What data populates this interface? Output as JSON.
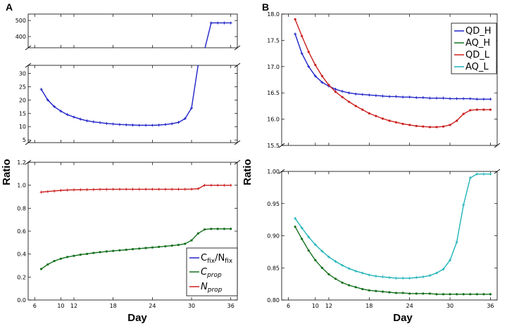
{
  "colors": {
    "blue": "#1f22c8",
    "red": "#cc1f1f",
    "green": "#15701e",
    "cyan": "#1fb3b8"
  },
  "chart_data": [
    {
      "id": "A",
      "panel_label": "A",
      "type": "line",
      "xlabel": "Day",
      "ylabel": "Ratio",
      "xlim": [
        5,
        37
      ],
      "xticks": [
        {
          "v": 6,
          "label": "6"
        },
        {
          "v": 10,
          "label": "10"
        },
        {
          "v": 12,
          "label": "12"
        },
        {
          "v": 18,
          "label": "18"
        },
        {
          "v": 24,
          "label": "24"
        },
        {
          "v": 30,
          "label": "30"
        },
        {
          "v": 36,
          "label": "36"
        }
      ],
      "subplots": [
        {
          "id": "A_top",
          "ylim": [
            330,
            540
          ],
          "yticks": [
            {
              "v": 400,
              "label": "400"
            },
            {
              "v": 500,
              "label": "500"
            }
          ],
          "series": [
            {
              "name": "Cfix/Nfix",
              "color": "blue",
              "marker": "plus",
              "x": [
                32,
                33,
                34,
                35,
                36
              ],
              "y": [
                320,
                485,
                485,
                485,
                485
              ]
            }
          ]
        },
        {
          "id": "A_mid",
          "ylim": [
            4,
            33
          ],
          "yticks": [
            {
              "v": 5,
              "label": "5"
            },
            {
              "v": 10,
              "label": "10"
            },
            {
              "v": 15,
              "label": "15"
            },
            {
              "v": 20,
              "label": "20"
            },
            {
              "v": 25,
              "label": "25"
            },
            {
              "v": 30,
              "label": "30"
            }
          ],
          "series": [
            {
              "name": "Cfix/Nfix",
              "color": "blue",
              "marker": "plus",
              "x": [
                7,
                8,
                9,
                10,
                11,
                12,
                13,
                14,
                15,
                16,
                17,
                18,
                19,
                20,
                21,
                22,
                23,
                24,
                25,
                26,
                27,
                28,
                29,
                30,
                31,
                31.6
              ],
              "y": [
                24,
                20,
                17.5,
                15.8,
                14.5,
                13.6,
                12.8,
                12.2,
                11.8,
                11.5,
                11.2,
                11,
                10.8,
                10.7,
                10.6,
                10.5,
                10.5,
                10.5,
                10.6,
                10.8,
                11.1,
                11.6,
                13,
                17,
                33,
                45
              ]
            }
          ]
        },
        {
          "id": "A_bot",
          "ylim": [
            0,
            1.2
          ],
          "yticks": [
            {
              "v": 0,
              "label": "0.0"
            },
            {
              "v": 0.2,
              "label": "0.2"
            },
            {
              "v": 0.4,
              "label": "0.4"
            },
            {
              "v": 0.6,
              "label": "0.6"
            },
            {
              "v": 0.8,
              "label": "0.8"
            },
            {
              "v": 1.0,
              "label": "1.0"
            },
            {
              "v": 1.2,
              "label": "1.2"
            }
          ],
          "series": [
            {
              "name": "Nprop",
              "color": "red",
              "marker": "plus",
              "x": [
                7,
                8,
                9,
                10,
                11,
                12,
                13,
                14,
                15,
                16,
                17,
                18,
                19,
                20,
                21,
                22,
                23,
                24,
                25,
                26,
                27,
                28,
                29,
                30,
                31,
                32,
                33,
                34,
                35,
                36
              ],
              "y": [
                0.94,
                0.945,
                0.95,
                0.955,
                0.958,
                0.96,
                0.961,
                0.962,
                0.963,
                0.964,
                0.964,
                0.965,
                0.965,
                0.965,
                0.965,
                0.965,
                0.965,
                0.965,
                0.965,
                0.965,
                0.965,
                0.965,
                0.965,
                0.966,
                0.97,
                1.0,
                1.0,
                1.0,
                1.0,
                1.0
              ]
            },
            {
              "name": "Cprop",
              "color": "green",
              "marker": "dot",
              "x": [
                7,
                8,
                9,
                10,
                11,
                12,
                13,
                14,
                15,
                16,
                17,
                18,
                19,
                20,
                21,
                22,
                23,
                24,
                25,
                26,
                27,
                28,
                29,
                30,
                31,
                32,
                33,
                34,
                35,
                36
              ],
              "y": [
                0.27,
                0.31,
                0.34,
                0.36,
                0.375,
                0.385,
                0.395,
                0.402,
                0.41,
                0.417,
                0.423,
                0.428,
                0.433,
                0.438,
                0.443,
                0.448,
                0.453,
                0.458,
                0.463,
                0.468,
                0.474,
                0.48,
                0.49,
                0.52,
                0.58,
                0.615,
                0.62,
                0.62,
                0.62,
                0.62
              ]
            }
          ]
        }
      ],
      "legend": {
        "position": "lower-right",
        "entries": [
          {
            "color": "blue",
            "text": "C",
            "sub1": "fix",
            "mid": "/N",
            "sub2": "fix"
          },
          {
            "color": "green",
            "text": "C",
            "sub1": "prop",
            "mid": "",
            "sub2": ""
          },
          {
            "color": "red",
            "text": "N",
            "sub1": "prop",
            "mid": "",
            "sub2": ""
          }
        ]
      }
    },
    {
      "id": "B",
      "panel_label": "B",
      "type": "line",
      "xlabel": "Day",
      "ylabel": "Ratio",
      "xlim": [
        5,
        37
      ],
      "xticks": [
        {
          "v": 6,
          "label": "6"
        },
        {
          "v": 10,
          "label": "10"
        },
        {
          "v": 12,
          "label": "12"
        },
        {
          "v": 18,
          "label": "18"
        },
        {
          "v": 24,
          "label": "24"
        },
        {
          "v": 30,
          "label": "30"
        },
        {
          "v": 36,
          "label": "36"
        }
      ],
      "subplots": [
        {
          "id": "B_top",
          "ylim": [
            15.5,
            18.0
          ],
          "yticks": [
            {
              "v": 15.5,
              "label": "15.5"
            },
            {
              "v": 16.0,
              "label": "16.0"
            },
            {
              "v": 16.5,
              "label": "16.5"
            },
            {
              "v": 17.0,
              "label": "17.0"
            },
            {
              "v": 17.5,
              "label": "17.5"
            },
            {
              "v": 18.0,
              "label": "18.0"
            }
          ],
          "series": [
            {
              "name": "QD_H",
              "color": "blue",
              "marker": "plus",
              "x": [
                7,
                8,
                9,
                10,
                11,
                12,
                13,
                14,
                15,
                16,
                17,
                18,
                19,
                20,
                21,
                22,
                23,
                24,
                25,
                26,
                27,
                28,
                29,
                30,
                31,
                32,
                33,
                34,
                35,
                36
              ],
              "y": [
                17.62,
                17.25,
                17.0,
                16.82,
                16.7,
                16.63,
                16.57,
                16.53,
                16.5,
                16.48,
                16.47,
                16.46,
                16.45,
                16.44,
                16.43,
                16.43,
                16.42,
                16.42,
                16.41,
                16.41,
                16.4,
                16.4,
                16.4,
                16.39,
                16.39,
                16.39,
                16.39,
                16.38,
                16.38,
                16.38
              ]
            },
            {
              "name": "QD_L",
              "color": "red",
              "marker": "dot",
              "x": [
                7,
                8,
                9,
                10,
                11,
                12,
                13,
                14,
                15,
                16,
                17,
                18,
                19,
                20,
                21,
                22,
                23,
                24,
                25,
                26,
                27,
                28,
                29,
                30,
                31,
                32,
                33,
                34,
                35,
                36
              ],
              "y": [
                17.9,
                17.58,
                17.28,
                17.03,
                16.82,
                16.65,
                16.52,
                16.42,
                16.33,
                16.25,
                16.18,
                16.11,
                16.06,
                16.01,
                15.97,
                15.94,
                15.91,
                15.89,
                15.87,
                15.86,
                15.85,
                15.85,
                15.86,
                15.89,
                15.97,
                16.1,
                16.17,
                16.18,
                16.18,
                16.18
              ]
            }
          ]
        },
        {
          "id": "B_bot",
          "ylim": [
            0.8,
            1.0
          ],
          "yticks": [
            {
              "v": 0.8,
              "label": "0.80"
            },
            {
              "v": 0.85,
              "label": "0.85"
            },
            {
              "v": 0.9,
              "label": "0.90"
            },
            {
              "v": 0.95,
              "label": "0.95"
            },
            {
              "v": 1.0,
              "label": "1.00"
            }
          ],
          "series": [
            {
              "name": "AQ_L",
              "color": "cyan",
              "marker": "plus",
              "x": [
                7,
                8,
                9,
                10,
                11,
                12,
                13,
                14,
                15,
                16,
                17,
                18,
                19,
                20,
                21,
                22,
                23,
                24,
                25,
                26,
                27,
                28,
                29,
                30,
                31,
                32,
                33,
                34,
                35,
                36
              ],
              "y": [
                0.927,
                0.912,
                0.898,
                0.886,
                0.876,
                0.867,
                0.86,
                0.854,
                0.849,
                0.845,
                0.842,
                0.839,
                0.837,
                0.836,
                0.835,
                0.834,
                0.834,
                0.834,
                0.835,
                0.836,
                0.838,
                0.842,
                0.848,
                0.862,
                0.89,
                0.948,
                0.99,
                0.996,
                0.996,
                0.996
              ]
            },
            {
              "name": "AQ_H",
              "color": "green",
              "marker": "dot",
              "x": [
                7,
                8,
                9,
                10,
                11,
                12,
                13,
                14,
                15,
                16,
                17,
                18,
                19,
                20,
                21,
                22,
                23,
                24,
                25,
                26,
                27,
                28,
                29,
                30,
                31,
                32,
                33,
                34,
                35,
                36
              ],
              "y": [
                0.914,
                0.895,
                0.877,
                0.862,
                0.85,
                0.84,
                0.833,
                0.827,
                0.823,
                0.82,
                0.817,
                0.815,
                0.814,
                0.813,
                0.812,
                0.811,
                0.811,
                0.81,
                0.81,
                0.81,
                0.81,
                0.809,
                0.809,
                0.809,
                0.809,
                0.809,
                0.809,
                0.809,
                0.809,
                0.809
              ]
            }
          ]
        }
      ],
      "legend": {
        "position": "upper-right",
        "entries": [
          {
            "color": "blue",
            "text": "QD_H"
          },
          {
            "color": "green",
            "text": "AQ_H"
          },
          {
            "color": "red",
            "text": "QD_L"
          },
          {
            "color": "cyan",
            "text": "AQ_L"
          }
        ]
      }
    }
  ]
}
